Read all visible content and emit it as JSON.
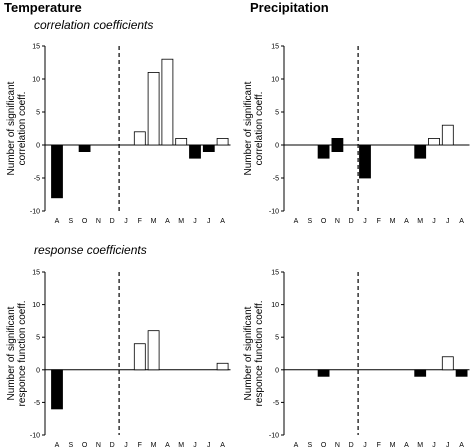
{
  "headers": {
    "temperature": "Temperature",
    "precipitation": "Precipitation",
    "row1_subtitle": "correlation coefficients",
    "row2_subtitle": "response coefficients"
  },
  "chart_data": [
    {
      "type": "bar",
      "categories": [
        "A",
        "S",
        "O",
        "N",
        "D",
        "J",
        "F",
        "M",
        "A",
        "M",
        "J",
        "J",
        "A"
      ],
      "values": [
        -8,
        0,
        -1,
        0,
        0,
        0,
        2,
        11,
        13,
        1,
        -2,
        -1,
        1
      ],
      "ylabel": [
        "Number of significant",
        "correlation coeff."
      ],
      "ylim": [
        -10,
        15
      ],
      "yticks": [
        -10,
        -5,
        0,
        5,
        10,
        15
      ],
      "divider_after_index": 4,
      "prior_year_fill": "#000000",
      "current_year_fill": "#ffffff",
      "current_year_negative_fill": "#000000"
    },
    {
      "type": "bar",
      "categories": [
        "A",
        "S",
        "O",
        "N",
        "D",
        "J",
        "F",
        "M",
        "A",
        "M",
        "J",
        "J",
        "A"
      ],
      "values": [
        0,
        0,
        -2,
        1,
        0,
        -5,
        0,
        0,
        0,
        -2,
        1,
        3,
        0
      ],
      "ylabel": [
        "Number of significant",
        "correlation coeff."
      ],
      "ylim": [
        -10,
        15
      ],
      "yticks": [
        -10,
        -5,
        0,
        5,
        10,
        15
      ],
      "divider_after_index": 4,
      "extra_bars": [
        {
          "index": 3,
          "value": -1
        }
      ],
      "prior_year_fill": "#000000",
      "current_year_fill": "#ffffff",
      "current_year_negative_fill": "#000000"
    },
    {
      "type": "bar",
      "categories": [
        "A",
        "S",
        "O",
        "N",
        "D",
        "J",
        "F",
        "M",
        "A",
        "M",
        "J",
        "J",
        "A"
      ],
      "values": [
        -6,
        0,
        0,
        0,
        0,
        0,
        4,
        6,
        0,
        0,
        0,
        0,
        1
      ],
      "ylabel": [
        "Number of significant",
        "responce function coeff."
      ],
      "ylim": [
        -10,
        15
      ],
      "yticks": [
        -10,
        -5,
        0,
        5,
        10,
        15
      ],
      "divider_after_index": 4,
      "prior_year_fill": "#000000",
      "current_year_fill": "#ffffff",
      "current_year_negative_fill": "#000000"
    },
    {
      "type": "bar",
      "categories": [
        "A",
        "S",
        "O",
        "N",
        "D",
        "J",
        "F",
        "M",
        "A",
        "M",
        "J",
        "J",
        "A"
      ],
      "values": [
        0,
        0,
        -1,
        0,
        0,
        0,
        0,
        0,
        0,
        -1,
        0,
        2,
        -1
      ],
      "ylabel": [
        "Number of significant",
        "responce function coeff."
      ],
      "ylim": [
        -10,
        15
      ],
      "yticks": [
        -10,
        -5,
        0,
        5,
        10,
        15
      ],
      "divider_after_index": 4,
      "prior_year_fill": "#000000",
      "current_year_fill": "#ffffff",
      "current_year_negative_fill": "#000000"
    }
  ]
}
